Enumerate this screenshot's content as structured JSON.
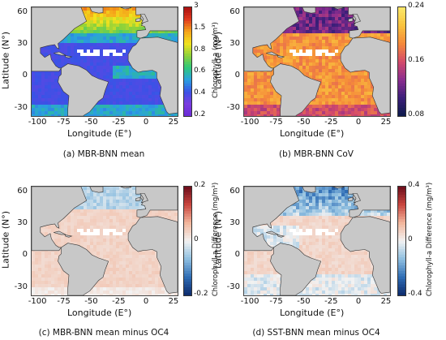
{
  "map": {
    "lat_ticks": [
      "60",
      "30",
      "0",
      "-30"
    ],
    "lon_ticks": [
      "-100",
      "-75",
      "-50",
      "-25",
      "0",
      "25"
    ],
    "xlabel": "Longitude (E°)",
    "ylabel": "Latitude (N°)",
    "extent": {
      "lon": [
        -105,
        28
      ],
      "lat": [
        -37,
        65
      ]
    }
  },
  "panels": [
    {
      "caption": "(a) MBR-BNN mean",
      "cbar_label": "Chlorophyll-a (mg/m³)",
      "cbar_ticks": [
        "3",
        "1.5",
        "0.8",
        "0.6",
        "0.4",
        "0.2"
      ],
      "scheme": "chl"
    },
    {
      "caption": "(b) MBR-BNN CoV",
      "cbar_label": "",
      "cbar_ticks": [
        "0.24",
        "0.16",
        "0.08"
      ],
      "scheme": "cov"
    },
    {
      "caption": "(c) MBR-BNN mean minus OC4",
      "cbar_label": "Chlorophyll-a Difference (mg/m³)",
      "cbar_ticks": [
        "0.2",
        "0",
        "-0.2"
      ],
      "scheme": "diff1"
    },
    {
      "caption": "(d) SST-BNN mean minus OC4",
      "cbar_label": "Chlorophyll-a Difference (mg/m³)",
      "cbar_ticks": [
        "0.4",
        "0",
        "-0.4"
      ],
      "scheme": "diff2"
    }
  ],
  "colors": {
    "land": "#c8c8c8",
    "coast": "#333333",
    "chl_scale": [
      "#6a2bd6",
      "#7b3de0",
      "#3a52e6",
      "#2aa0e0",
      "#2fc87a",
      "#8ed23a",
      "#f2e21d",
      "#f5a21a",
      "#e03a1f",
      "#a80f12"
    ],
    "cov_scale": [
      "#0b1a4a",
      "#3c1f7a",
      "#8b2d8f",
      "#d54b6a",
      "#f58a3a",
      "#f9c33e",
      "#fbe86a"
    ],
    "diff_scale": [
      "#0c2a6b",
      "#2f6db5",
      "#8fbfe0",
      "#f2f2f2",
      "#f2b59b",
      "#c9463f",
      "#6b0d1b"
    ]
  }
}
